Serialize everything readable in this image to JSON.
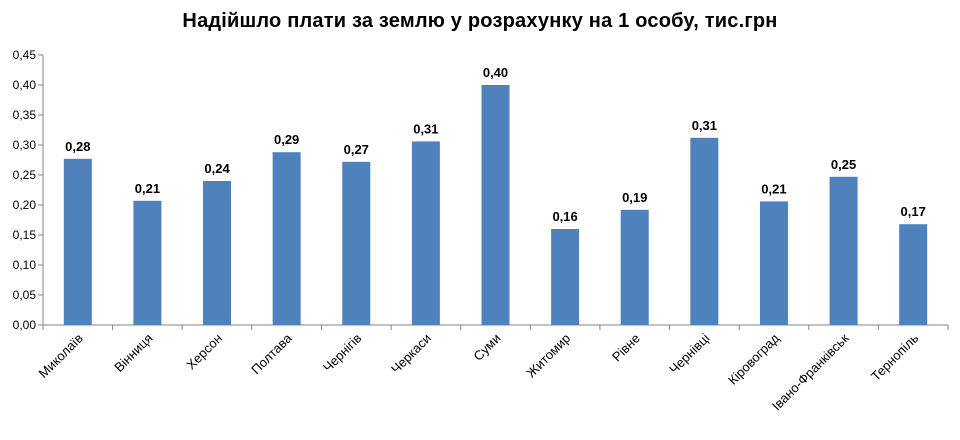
{
  "chart_data": {
    "type": "bar",
    "title": "Надійшло плати за землю у розрахунку на 1 особу, тис.грн",
    "xlabel": "",
    "ylabel": "",
    "categories": [
      "Миколаїв",
      "Вінниця",
      "Херсон",
      "Полтава",
      "Чернігів",
      "Черкаси",
      "Суми",
      "Житомир",
      "Рівне",
      "Чернівці",
      "Кіровоград",
      "Івано-Франківськ",
      "Тернопіль"
    ],
    "values": [
      0.277,
      0.207,
      0.24,
      0.288,
      0.272,
      0.306,
      0.4,
      0.16,
      0.192,
      0.312,
      0.206,
      0.247,
      0.168
    ],
    "data_labels": [
      "0,28",
      "0,21",
      "0,24",
      "0,29",
      "0,27",
      "0,31",
      "0,40",
      "0,16",
      "0,19",
      "0,31",
      "0,21",
      "0,25",
      "0,17"
    ],
    "ylim": [
      0,
      0.45
    ],
    "yticks": [
      0,
      0.05,
      0.1,
      0.15,
      0.2,
      0.25,
      0.3,
      0.35,
      0.4,
      0.45
    ],
    "ytick_labels": [
      "0,00",
      "0,05",
      "0,10",
      "0,15",
      "0,20",
      "0,25",
      "0,30",
      "0,35",
      "0,40",
      "0,45"
    ],
    "grid": false,
    "legend": "none",
    "bar_color": "#4F81BD",
    "axis_color": "#868686"
  }
}
